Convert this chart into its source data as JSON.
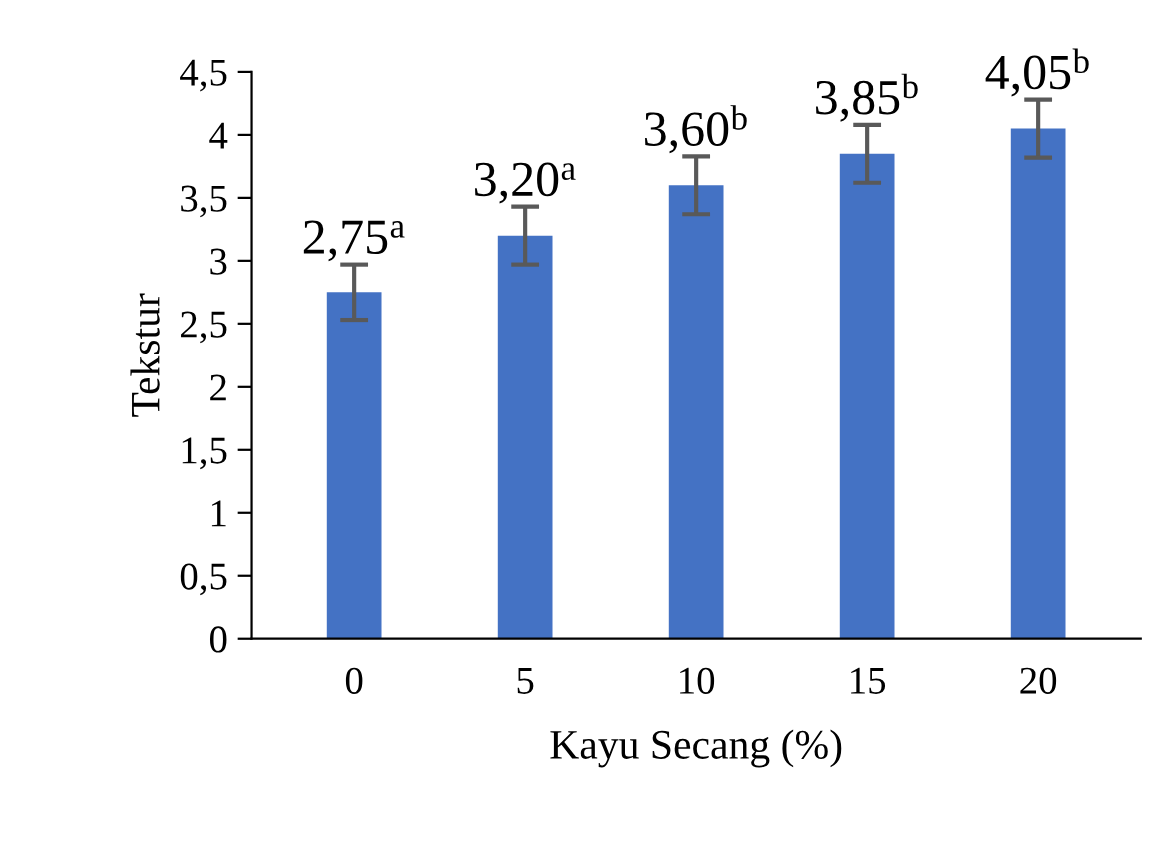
{
  "chart_data": {
    "type": "bar",
    "xlabel": "Kayu Secang (%)",
    "ylabel": "Tekstur",
    "categories": [
      "0",
      "5",
      "10",
      "15",
      "20"
    ],
    "values": [
      2.75,
      3.2,
      3.6,
      3.85,
      4.05
    ],
    "errors": [
      0.22,
      0.23,
      0.23,
      0.23,
      0.23
    ],
    "value_labels": [
      "2,75$^{a}$",
      "3,20$^{a}$",
      "3,60$^{b}$",
      "3,85$^{b}$",
      "4,05$^{b}$"
    ],
    "color": "#4472c4",
    "ylim": [
      0,
      4.5
    ],
    "yticks": [
      {
        "value": 0,
        "label": "0"
      },
      {
        "value": 0.5,
        "label": "0,5"
      },
      {
        "value": 1,
        "label": "1"
      },
      {
        "value": 1.5,
        "label": "1,5"
      },
      {
        "value": 2,
        "label": "2"
      },
      {
        "value": 2.5,
        "label": "2,5"
      },
      {
        "value": 3,
        "label": "3"
      },
      {
        "value": 3.5,
        "label": "3,5"
      },
      {
        "value": 4,
        "label": "4"
      },
      {
        "value": 4.5,
        "label": "4,5"
      }
    ],
    "grid": false
  }
}
